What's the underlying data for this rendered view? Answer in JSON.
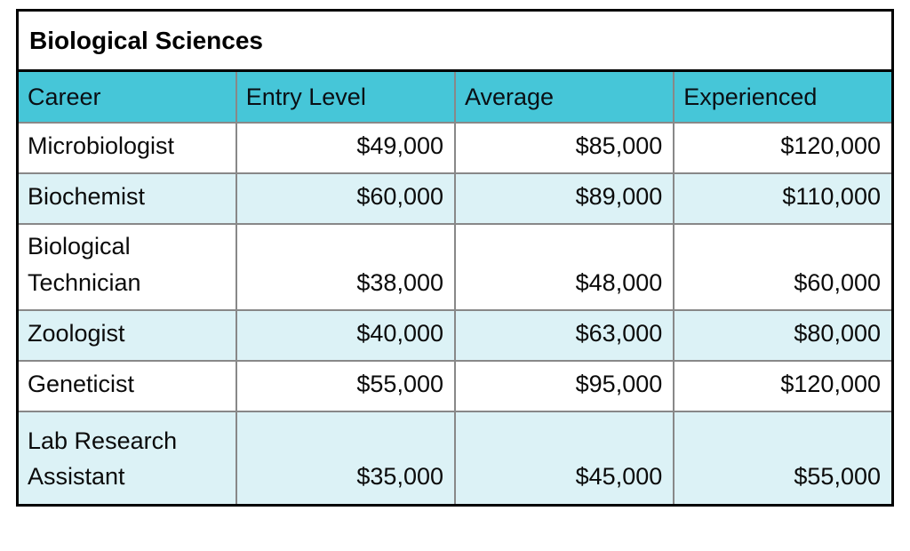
{
  "chart_data": {
    "type": "table",
    "title": "Biological Sciences",
    "columns": [
      "Career",
      "Entry Level",
      "Average",
      "Experienced"
    ],
    "rows": [
      {
        "career": "Microbiologist",
        "entry": "$49,000",
        "average": "$85,000",
        "experienced": "$120,000"
      },
      {
        "career": "Biochemist",
        "entry": "$60,000",
        "average": "$89,000",
        "experienced": "$110,000"
      },
      {
        "career": "Biological Technician",
        "entry": "$38,000",
        "average": "$48,000",
        "experienced": "$60,000"
      },
      {
        "career": "Zoologist",
        "entry": "$40,000",
        "average": "$63,000",
        "experienced": "$80,000"
      },
      {
        "career": "Geneticist",
        "entry": "$55,000",
        "average": "$95,000",
        "experienced": "$120,000"
      },
      {
        "career": "Lab Research Assistant",
        "entry": "$35,000",
        "average": "$45,000",
        "experienced": "$55,000"
      }
    ],
    "salary_values": {
      "Microbiologist": {
        "entry": 49000,
        "average": 85000,
        "experienced": 120000
      },
      "Biochemist": {
        "entry": 60000,
        "average": 89000,
        "experienced": 110000
      },
      "Biological Technician": {
        "entry": 38000,
        "average": 48000,
        "experienced": 60000
      },
      "Zoologist": {
        "entry": 40000,
        "average": 63000,
        "experienced": 80000
      },
      "Geneticist": {
        "entry": 55000,
        "average": 95000,
        "experienced": 120000
      },
      "Lab Research Assistant": {
        "entry": 35000,
        "average": 45000,
        "experienced": 55000
      }
    },
    "layout_hints": {
      "row_striping": "white / light-blue alternating starting with white",
      "numeric_alignment": "right",
      "career_alignment": "left"
    },
    "colors": {
      "header_bg": "#46c6d8",
      "alt_row_bg": "#dcf2f6",
      "inner_border": "#888888",
      "outer_border": "#000000",
      "text": "#0b0b0b"
    }
  }
}
